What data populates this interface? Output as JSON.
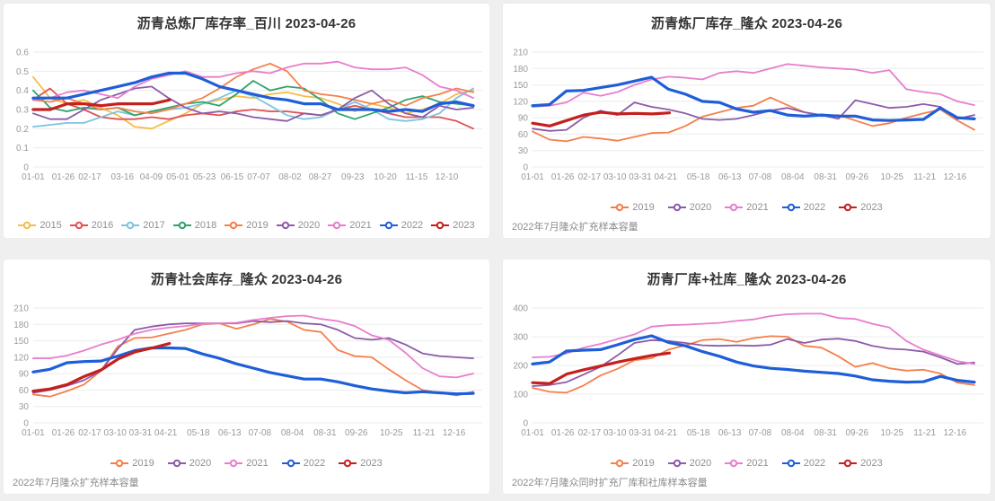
{
  "page": {
    "background": "#efefef",
    "panel_background": "#ffffff",
    "grid_color": "#ebebeb",
    "axis_label_color": "#999999",
    "legend_text_color": "#8f8f8f",
    "title_color": "#333333"
  },
  "chart_data": [
    {
      "type": "line",
      "title": "沥青总炼厂库存率_百川 2023-04-26",
      "footnote": "",
      "xlabel": "",
      "ylabel": "",
      "ylim": [
        0,
        0.6
      ],
      "yticks": [
        0,
        0.1,
        0.2,
        0.3,
        0.4,
        0.5,
        0.6
      ],
      "ytick_labels": [
        "0",
        "0.1",
        "0.2",
        "0.3",
        "0.4",
        "0.5",
        "0.6"
      ],
      "xticks": [
        "01-01",
        "01-26",
        "02-17",
        "03-16",
        "04-09",
        "05-01",
        "05-23",
        "06-15",
        "07-07",
        "08-02",
        "08-27",
        "09-23",
        "10-20",
        "11-15",
        "12-10"
      ],
      "legend_position": "bottom",
      "grid": true,
      "series": [
        {
          "name": "2015",
          "color": "#F5BD4A",
          "width": 1.8,
          "values": [
            0.47,
            0.36,
            0.33,
            0.35,
            0.31,
            0.27,
            0.21,
            0.2,
            0.24,
            0.28,
            0.33,
            0.35,
            0.37,
            0.36,
            0.38,
            0.39,
            0.37,
            0.36,
            0.33,
            0.29,
            0.33,
            0.31,
            0.28,
            0.3,
            0.33,
            0.38,
            0.4
          ]
        },
        {
          "name": "2016",
          "color": "#E25052",
          "width": 1.8,
          "values": [
            0.35,
            0.41,
            0.33,
            0.3,
            0.26,
            0.25,
            0.25,
            0.26,
            0.25,
            0.27,
            0.28,
            0.27,
            0.29,
            0.3,
            0.29,
            0.29,
            0.28,
            0.27,
            0.3,
            0.32,
            0.3,
            0.28,
            0.26,
            0.26,
            0.26,
            0.24,
            0.2
          ]
        },
        {
          "name": "2017",
          "color": "#7EC4DE",
          "width": 1.8,
          "values": [
            0.21,
            0.22,
            0.23,
            0.23,
            0.26,
            0.29,
            0.27,
            0.29,
            0.3,
            0.31,
            0.33,
            0.36,
            0.4,
            0.37,
            0.32,
            0.27,
            0.25,
            0.26,
            0.3,
            0.34,
            0.3,
            0.25,
            0.24,
            0.25,
            0.28,
            0.36,
            0.41
          ]
        },
        {
          "name": "2018",
          "color": "#2FA36B",
          "width": 1.8,
          "values": [
            0.4,
            0.31,
            0.29,
            0.31,
            0.3,
            0.31,
            0.27,
            0.29,
            0.31,
            0.33,
            0.34,
            0.32,
            0.38,
            0.45,
            0.4,
            0.42,
            0.41,
            0.35,
            0.28,
            0.25,
            0.28,
            0.31,
            0.35,
            0.37,
            0.34,
            0.33,
            0.32
          ]
        },
        {
          "name": "2019",
          "color": "#F57F4B",
          "width": 1.8,
          "values": [
            0.35,
            0.34,
            0.36,
            0.33,
            0.3,
            0.31,
            0.29,
            0.28,
            0.3,
            0.33,
            0.36,
            0.41,
            0.47,
            0.51,
            0.54,
            0.5,
            0.4,
            0.38,
            0.37,
            0.35,
            0.33,
            0.35,
            0.32,
            0.36,
            0.38,
            0.41,
            0.39
          ]
        },
        {
          "name": "2020",
          "color": "#8C5BA9",
          "width": 1.8,
          "values": [
            0.28,
            0.25,
            0.25,
            0.3,
            0.35,
            0.38,
            0.41,
            0.42,
            0.36,
            0.31,
            0.28,
            0.29,
            0.28,
            0.26,
            0.25,
            0.24,
            0.28,
            0.27,
            0.3,
            0.36,
            0.4,
            0.33,
            0.28,
            0.26,
            0.32,
            0.3,
            0.31
          ]
        },
        {
          "name": "2021",
          "color": "#E77ECC",
          "width": 1.8,
          "values": [
            0.35,
            0.36,
            0.39,
            0.4,
            0.38,
            0.36,
            0.42,
            0.46,
            0.48,
            0.5,
            0.47,
            0.47,
            0.49,
            0.5,
            0.49,
            0.52,
            0.54,
            0.54,
            0.55,
            0.52,
            0.51,
            0.51,
            0.52,
            0.48,
            0.42,
            0.4,
            0.36
          ]
        },
        {
          "name": "2022",
          "color": "#1E5ED8",
          "width": 3.2,
          "values": [
            0.36,
            0.36,
            0.36,
            0.38,
            0.4,
            0.42,
            0.44,
            0.47,
            0.49,
            0.49,
            0.46,
            0.42,
            0.4,
            0.38,
            0.36,
            0.35,
            0.33,
            0.33,
            0.3,
            0.3,
            0.3,
            0.29,
            0.3,
            0.29,
            0.33,
            0.34,
            0.32
          ]
        },
        {
          "name": "2023",
          "color": "#C4201D",
          "width": 3.2,
          "end": 0.31,
          "values": [
            0.3,
            0.3,
            0.33,
            0.33,
            0.32,
            0.33,
            0.33,
            0.33,
            0.35
          ]
        }
      ]
    },
    {
      "type": "line",
      "title": "沥青炼厂库存_隆众 2023-04-26",
      "footnote": "2022年7月隆众扩充样本容量",
      "xlabel": "",
      "ylabel": "",
      "ylim": [
        0,
        210
      ],
      "yticks": [
        0,
        30,
        60,
        90,
        120,
        150,
        180,
        210
      ],
      "ytick_labels": [
        "0",
        "30",
        "60",
        "90",
        "120",
        "150",
        "180",
        "210"
      ],
      "xticks": [
        "01-01",
        "01-26",
        "02-17",
        "03-10",
        "03-31",
        "04-21",
        "05-18",
        "06-13",
        "07-08",
        "08-04",
        "08-31",
        "09-26",
        "10-25",
        "11-21",
        "12-16"
      ],
      "legend_position": "bottom",
      "grid": true,
      "series": [
        {
          "name": "2019",
          "color": "#F57F4B",
          "width": 1.8,
          "values": [
            65,
            50,
            47,
            55,
            52,
            48,
            55,
            62,
            63,
            75,
            92,
            100,
            108,
            112,
            127,
            113,
            100,
            93,
            95,
            85,
            75,
            80,
            90,
            98,
            105,
            85,
            68
          ]
        },
        {
          "name": "2020",
          "color": "#8C5BA9",
          "width": 1.8,
          "values": [
            70,
            66,
            68,
            90,
            103,
            95,
            118,
            110,
            105,
            98,
            88,
            86,
            88,
            95,
            103,
            108,
            100,
            95,
            88,
            122,
            115,
            108,
            110,
            115,
            110,
            88,
            95
          ]
        },
        {
          "name": "2021",
          "color": "#E77ECC",
          "width": 1.8,
          "values": [
            110,
            112,
            118,
            136,
            130,
            137,
            150,
            160,
            165,
            163,
            160,
            172,
            175,
            172,
            180,
            188,
            185,
            182,
            180,
            178,
            172,
            177,
            142,
            137,
            133,
            120,
            113
          ]
        },
        {
          "name": "2022",
          "color": "#1E5ED8",
          "width": 3.2,
          "values": [
            112,
            114,
            139,
            140,
            145,
            150,
            157,
            164,
            142,
            133,
            120,
            118,
            106,
            100,
            103,
            95,
            93,
            95,
            93,
            93,
            86,
            85,
            86,
            87,
            108,
            90,
            88
          ]
        },
        {
          "name": "2023",
          "color": "#C4201D",
          "width": 3.2,
          "end": 0.31,
          "values": [
            80,
            75,
            85,
            95,
            100,
            97,
            98,
            97,
            99
          ]
        }
      ]
    },
    {
      "type": "line",
      "title": "沥青社会库存_隆众 2023-04-26",
      "footnote": "2022年7月隆众扩充样本容量",
      "xlabel": "",
      "ylabel": "",
      "ylim": [
        0,
        210
      ],
      "yticks": [
        0,
        30,
        60,
        90,
        120,
        150,
        180,
        210
      ],
      "ytick_labels": [
        "0",
        "30",
        "60",
        "90",
        "120",
        "150",
        "180",
        "210"
      ],
      "xticks": [
        "01-01",
        "01-26",
        "02-17",
        "03-10",
        "03-31",
        "04-21",
        "05-18",
        "06-13",
        "07-08",
        "08-04",
        "08-31",
        "09-26",
        "10-25",
        "11-21",
        "12-16"
      ],
      "legend_position": "bottom",
      "grid": true,
      "series": [
        {
          "name": "2019",
          "color": "#F57F4B",
          "width": 1.8,
          "values": [
            52,
            48,
            58,
            70,
            95,
            140,
            155,
            156,
            163,
            170,
            180,
            182,
            172,
            180,
            190,
            185,
            170,
            166,
            133,
            122,
            120,
            98,
            78,
            60,
            55,
            50,
            57
          ]
        },
        {
          "name": "2020",
          "color": "#8C5BA9",
          "width": 1.8,
          "values": [
            55,
            60,
            68,
            78,
            95,
            135,
            170,
            176,
            180,
            182,
            182,
            182,
            182,
            186,
            184,
            186,
            182,
            180,
            170,
            155,
            152,
            155,
            143,
            127,
            122,
            120,
            118
          ]
        },
        {
          "name": "2021",
          "color": "#E77ECC",
          "width": 1.8,
          "values": [
            118,
            118,
            123,
            132,
            143,
            152,
            163,
            170,
            174,
            177,
            181,
            182,
            183,
            188,
            192,
            195,
            196,
            190,
            186,
            177,
            160,
            152,
            128,
            100,
            85,
            83,
            90
          ]
        },
        {
          "name": "2022",
          "color": "#1E5ED8",
          "width": 3.2,
          "values": [
            93,
            98,
            110,
            112,
            113,
            122,
            132,
            137,
            137,
            136,
            126,
            118,
            108,
            100,
            92,
            86,
            80,
            80,
            75,
            68,
            62,
            58,
            55,
            57,
            55,
            53,
            54
          ]
        },
        {
          "name": "2023",
          "color": "#C4201D",
          "width": 3.2,
          "end": 0.31,
          "values": [
            58,
            62,
            70,
            85,
            97,
            117,
            130,
            137,
            145
          ]
        }
      ]
    },
    {
      "type": "line",
      "title": "沥青厂库+社库_隆众 2023-04-26",
      "footnote": "2022年7月隆众同时扩充厂库和社库样本容量",
      "xlabel": "",
      "ylabel": "",
      "ylim": [
        0,
        400
      ],
      "yticks": [
        0,
        100,
        200,
        300,
        400
      ],
      "ytick_labels": [
        "0",
        "100",
        "200",
        "300",
        "400"
      ],
      "xticks": [
        "01-01",
        "01-26",
        "02-17",
        "03-10",
        "03-31",
        "04-21",
        "05-18",
        "06-13",
        "07-08",
        "08-04",
        "08-31",
        "09-26",
        "10-25",
        "11-21",
        "12-16"
      ],
      "legend_position": "bottom",
      "grid": true,
      "series": [
        {
          "name": "2019",
          "color": "#F57F4B",
          "width": 1.8,
          "values": [
            122,
            108,
            105,
            130,
            165,
            188,
            218,
            225,
            255,
            270,
            288,
            292,
            282,
            295,
            302,
            300,
            268,
            262,
            232,
            195,
            208,
            190,
            182,
            185,
            172,
            140,
            132
          ]
        },
        {
          "name": "2020",
          "color": "#8C5BA9",
          "width": 1.8,
          "values": [
            128,
            132,
            142,
            168,
            195,
            235,
            278,
            288,
            285,
            278,
            270,
            268,
            270,
            268,
            272,
            292,
            278,
            290,
            293,
            285,
            268,
            258,
            255,
            248,
            228,
            205,
            210
          ]
        },
        {
          "name": "2021",
          "color": "#E77ECC",
          "width": 1.8,
          "values": [
            228,
            230,
            242,
            262,
            275,
            292,
            308,
            335,
            340,
            342,
            345,
            348,
            355,
            360,
            372,
            378,
            380,
            380,
            365,
            362,
            345,
            332,
            285,
            255,
            235,
            215,
            205
          ]
        },
        {
          "name": "2022",
          "color": "#1E5ED8",
          "width": 3.2,
          "values": [
            205,
            212,
            250,
            253,
            255,
            272,
            290,
            303,
            280,
            268,
            248,
            232,
            212,
            198,
            190,
            186,
            180,
            176,
            172,
            163,
            150,
            145,
            142,
            143,
            162,
            148,
            142
          ]
        },
        {
          "name": "2023",
          "color": "#C4201D",
          "width": 3.2,
          "end": 0.31,
          "values": [
            140,
            137,
            170,
            185,
            198,
            212,
            224,
            235,
            243
          ]
        }
      ]
    }
  ]
}
